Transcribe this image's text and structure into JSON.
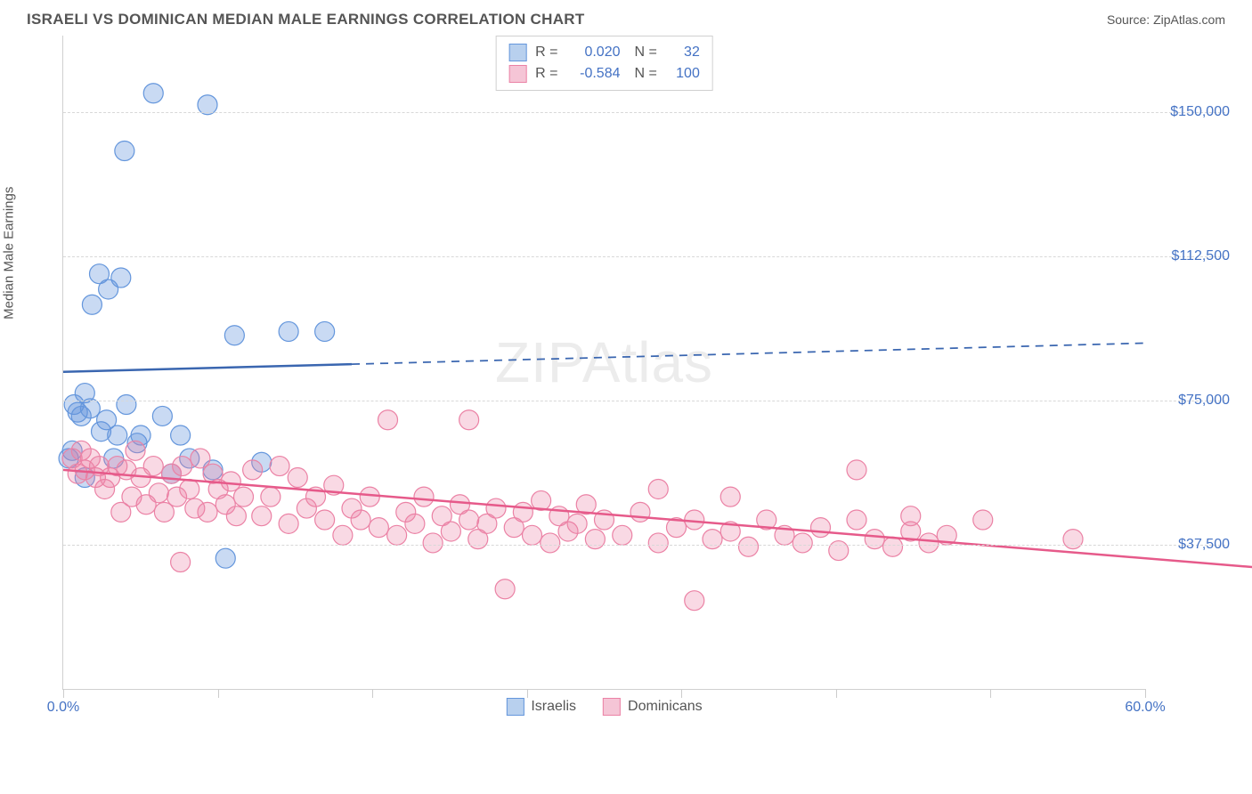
{
  "header": {
    "title": "ISRAELI VS DOMINICAN MEDIAN MALE EARNINGS CORRELATION CHART",
    "source_label": "Source: ",
    "source_value": "ZipAtlas.com"
  },
  "chart": {
    "type": "scatter",
    "y_axis_label": "Median Male Earnings",
    "background_color": "#ffffff",
    "grid_color": "#d8d8d8",
    "axis_color": "#d0d0d0",
    "tick_label_color": "#4472c4",
    "tick_fontsize": 16,
    "title_fontsize": 17,
    "label_fontsize": 15,
    "xlim": [
      0,
      60
    ],
    "ylim": [
      0,
      170000
    ],
    "y_ticks": [
      {
        "value": 37500,
        "label": "$37,500"
      },
      {
        "value": 75000,
        "label": "$75,000"
      },
      {
        "value": 112500,
        "label": "$112,500"
      },
      {
        "value": 150000,
        "label": "$150,000"
      }
    ],
    "x_ticks": [
      0,
      8.57,
      17.14,
      25.71,
      34.28,
      42.85,
      51.42,
      60
    ],
    "x_tick_labels": {
      "start": "0.0%",
      "end": "60.0%"
    },
    "watermark": "ZIPAtlas",
    "series": [
      {
        "name": "Israelis",
        "color_fill": "rgba(100,150,220,0.35)",
        "color_stroke": "#6496dc",
        "swatch_fill": "#b8d0ee",
        "swatch_stroke": "#6496dc",
        "marker_radius": 11,
        "R": "0.020",
        "N": "32",
        "trend": {
          "color": "#3a66b0",
          "width": 2.5,
          "dash_after": 16,
          "y_start": 82500,
          "y_end": 90000
        },
        "points": [
          [
            0.3,
            60000
          ],
          [
            0.5,
            62000
          ],
          [
            0.6,
            74000
          ],
          [
            0.8,
            72000
          ],
          [
            1.0,
            71000
          ],
          [
            1.2,
            77000
          ],
          [
            1.2,
            55000
          ],
          [
            1.5,
            73000
          ],
          [
            1.6,
            100000
          ],
          [
            2.0,
            108000
          ],
          [
            2.1,
            67000
          ],
          [
            2.4,
            70000
          ],
          [
            2.5,
            104000
          ],
          [
            2.8,
            60000
          ],
          [
            3.0,
            66000
          ],
          [
            3.2,
            107000
          ],
          [
            3.4,
            140000
          ],
          [
            3.5,
            74000
          ],
          [
            4.1,
            64000
          ],
          [
            4.3,
            66000
          ],
          [
            5.0,
            155000
          ],
          [
            5.5,
            71000
          ],
          [
            6.0,
            56000
          ],
          [
            6.5,
            66000
          ],
          [
            7.0,
            60000
          ],
          [
            8.0,
            152000
          ],
          [
            8.3,
            57000
          ],
          [
            9.0,
            34000
          ],
          [
            9.5,
            92000
          ],
          [
            11.0,
            59000
          ],
          [
            12.5,
            93000
          ],
          [
            14.5,
            93000
          ]
        ]
      },
      {
        "name": "Dominicans",
        "color_fill": "rgba(235,130,165,0.30)",
        "color_stroke": "#eb82a5",
        "swatch_fill": "#f5c5d6",
        "swatch_stroke": "#eb82a5",
        "marker_radius": 11,
        "R": "-0.584",
        "N": "100",
        "trend": {
          "color": "#e65a8a",
          "width": 2.5,
          "dash_after": 100,
          "y_start": 57000,
          "y_end": 34000
        },
        "points": [
          [
            0.5,
            60000
          ],
          [
            0.8,
            56000
          ],
          [
            1.0,
            62000
          ],
          [
            1.2,
            57000
          ],
          [
            1.5,
            60000
          ],
          [
            1.8,
            55000
          ],
          [
            2.0,
            58000
          ],
          [
            2.3,
            52000
          ],
          [
            2.6,
            55000
          ],
          [
            3.0,
            58000
          ],
          [
            3.2,
            46000
          ],
          [
            3.5,
            57000
          ],
          [
            3.8,
            50000
          ],
          [
            4.0,
            62000
          ],
          [
            4.3,
            55000
          ],
          [
            4.6,
            48000
          ],
          [
            5.0,
            58000
          ],
          [
            5.3,
            51000
          ],
          [
            5.6,
            46000
          ],
          [
            6.0,
            56000
          ],
          [
            6.3,
            50000
          ],
          [
            6.6,
            58000
          ],
          [
            6.5,
            33000
          ],
          [
            7.0,
            52000
          ],
          [
            7.3,
            47000
          ],
          [
            7.6,
            60000
          ],
          [
            8.0,
            46000
          ],
          [
            8.3,
            56000
          ],
          [
            8.6,
            52000
          ],
          [
            9.0,
            48000
          ],
          [
            9.3,
            54000
          ],
          [
            9.6,
            45000
          ],
          [
            10.0,
            50000
          ],
          [
            10.5,
            57000
          ],
          [
            11.0,
            45000
          ],
          [
            11.5,
            50000
          ],
          [
            12.0,
            58000
          ],
          [
            12.5,
            43000
          ],
          [
            13.0,
            55000
          ],
          [
            13.5,
            47000
          ],
          [
            14.0,
            50000
          ],
          [
            14.5,
            44000
          ],
          [
            15.0,
            53000
          ],
          [
            15.5,
            40000
          ],
          [
            16.0,
            47000
          ],
          [
            16.5,
            44000
          ],
          [
            17.0,
            50000
          ],
          [
            17.5,
            42000
          ],
          [
            18.0,
            70000
          ],
          [
            18.5,
            40000
          ],
          [
            19.0,
            46000
          ],
          [
            19.5,
            43000
          ],
          [
            20.0,
            50000
          ],
          [
            20.5,
            38000
          ],
          [
            21.0,
            45000
          ],
          [
            21.5,
            41000
          ],
          [
            22.0,
            48000
          ],
          [
            22.5,
            44000
          ],
          [
            22.5,
            70000
          ],
          [
            23.0,
            39000
          ],
          [
            23.5,
            43000
          ],
          [
            24.0,
            47000
          ],
          [
            24.5,
            26000
          ],
          [
            25.0,
            42000
          ],
          [
            25.5,
            46000
          ],
          [
            26.0,
            40000
          ],
          [
            26.5,
            49000
          ],
          [
            27.0,
            38000
          ],
          [
            27.5,
            45000
          ],
          [
            28.0,
            41000
          ],
          [
            28.5,
            43000
          ],
          [
            29.0,
            48000
          ],
          [
            29.5,
            39000
          ],
          [
            30.0,
            44000
          ],
          [
            31.0,
            40000
          ],
          [
            32.0,
            46000
          ],
          [
            33.0,
            38000
          ],
          [
            33.0,
            52000
          ],
          [
            34.0,
            42000
          ],
          [
            35.0,
            44000
          ],
          [
            35.0,
            23000
          ],
          [
            36.0,
            39000
          ],
          [
            37.0,
            50000
          ],
          [
            37.0,
            41000
          ],
          [
            38.0,
            37000
          ],
          [
            39.0,
            44000
          ],
          [
            40.0,
            40000
          ],
          [
            41.0,
            38000
          ],
          [
            42.0,
            42000
          ],
          [
            43.0,
            36000
          ],
          [
            44.0,
            44000
          ],
          [
            44.0,
            57000
          ],
          [
            45.0,
            39000
          ],
          [
            46.0,
            37000
          ],
          [
            47.0,
            45000
          ],
          [
            47.0,
            41000
          ],
          [
            48.0,
            38000
          ],
          [
            49.0,
            40000
          ],
          [
            51.0,
            44000
          ],
          [
            56.0,
            39000
          ]
        ]
      }
    ],
    "legend_bottom": [
      {
        "label": "Israelis",
        "fill": "#b8d0ee",
        "stroke": "#6496dc"
      },
      {
        "label": "Dominicans",
        "fill": "#f5c5d6",
        "stroke": "#eb82a5"
      }
    ]
  }
}
